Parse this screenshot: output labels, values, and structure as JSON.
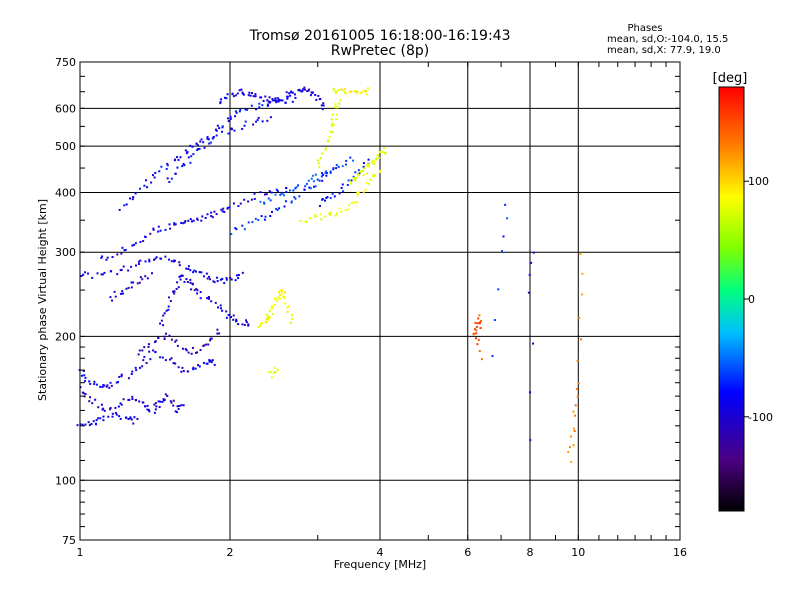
{
  "chart_data": {
    "type": "scatter",
    "title": "Tromsø 20161005 16:18:00-16:19:43",
    "subtitle": "RwPretec (8p)",
    "xlabel": "Frequency [MHz]",
    "ylabel": "Stationary phase Virtual Height [km]",
    "x_scale": "log",
    "y_scale": "log",
    "xlim": [
      1,
      16
    ],
    "ylim": [
      75,
      750
    ],
    "x_ticks": [
      1,
      2,
      4,
      6,
      8,
      10,
      16
    ],
    "y_ticks": [
      75,
      100,
      200,
      300,
      400,
      500,
      600,
      750
    ],
    "grid": true,
    "stats": {
      "heading": "Phases",
      "line_o": "mean, sd,O:-104.0, 15.5",
      "line_x": "mean, sd,X:  77.9, 19.0"
    },
    "colorbar": {
      "label": "[deg]",
      "range": [
        -180,
        180
      ],
      "ticks": [
        100,
        0,
        -100
      ],
      "colors": [
        "#000000",
        "#4b0082",
        "#0000ff",
        "#00bfff",
        "#00ff7f",
        "#7fff00",
        "#ffff00",
        "#ff7f00",
        "#ff0000"
      ]
    },
    "traces": [
      {
        "x": [
          1.0,
          1.05,
          1.1,
          1.18,
          1.25,
          1.3
        ],
        "y": [
          132,
          131,
          134,
          137,
          135,
          133
        ],
        "phase": -110
      },
      {
        "x": [
          1.0,
          1.05,
          1.12,
          1.2,
          1.28,
          1.35,
          1.4,
          1.45,
          1.5,
          1.55,
          1.6
        ],
        "y": [
          155,
          148,
          140,
          145,
          150,
          143,
          140,
          145,
          150,
          140,
          145
        ],
        "phase": -115
      },
      {
        "x": [
          1.0,
          1.04,
          1.1,
          1.15,
          1.22
        ],
        "y": [
          170,
          162,
          155,
          158,
          165
        ],
        "phase": -105
      },
      {
        "x": [
          1.25,
          1.32,
          1.4,
          1.5,
          1.6,
          1.7,
          1.8,
          1.85
        ],
        "y": [
          165,
          175,
          185,
          180,
          170,
          172,
          178,
          175
        ],
        "phase": -110
      },
      {
        "x": [
          1.3,
          1.4,
          1.5,
          1.6,
          1.7,
          1.8,
          1.9
        ],
        "y": [
          185,
          195,
          200,
          190,
          185,
          195,
          205
        ],
        "phase": -120
      },
      {
        "x": [
          1.45,
          1.5,
          1.55,
          1.6,
          1.65,
          1.7,
          1.8,
          1.9,
          2.0,
          2.1,
          2.2
        ],
        "y": [
          210,
          230,
          250,
          270,
          260,
          250,
          240,
          230,
          220,
          215,
          210
        ],
        "phase": -112
      },
      {
        "x": [
          1.0,
          1.1,
          1.2,
          1.3,
          1.4,
          1.5,
          1.6,
          1.7,
          1.8,
          1.9,
          2.0,
          2.1
        ],
        "y": [
          270,
          268,
          272,
          285,
          292,
          290,
          282,
          272,
          266,
          262,
          262,
          268
        ],
        "phase": -108
      },
      {
        "x": [
          1.15,
          1.22,
          1.3,
          1.38
        ],
        "y": [
          240,
          250,
          260,
          268
        ],
        "phase": -115
      },
      {
        "x": [
          1.1,
          1.2,
          1.3,
          1.4,
          1.5,
          1.6,
          1.7,
          1.8,
          1.9,
          2.0,
          2.2,
          2.4,
          2.6
        ],
        "y": [
          290,
          300,
          315,
          330,
          340,
          345,
          350,
          355,
          365,
          375,
          390,
          400,
          405
        ],
        "phase": -110
      },
      {
        "x": [
          1.2,
          1.3,
          1.4,
          1.5,
          1.6,
          1.7,
          1.8,
          2.0,
          2.2,
          2.4
        ],
        "y": [
          370,
          400,
          430,
          455,
          480,
          500,
          520,
          540,
          560,
          570
        ],
        "phase": -105
      },
      {
        "x": [
          1.5,
          1.6,
          1.7,
          1.8,
          1.9,
          2.0,
          2.1,
          2.3,
          2.5,
          2.7
        ],
        "y": [
          420,
          450,
          480,
          510,
          545,
          570,
          590,
          610,
          620,
          625
        ],
        "phase": -100
      },
      {
        "x": [
          1.9,
          2.0,
          2.1,
          2.2,
          2.3,
          2.4,
          2.5,
          2.6
        ],
        "y": [
          620,
          640,
          650,
          645,
          630,
          625,
          620,
          630
        ],
        "phase": -112
      },
      {
        "x": [
          2.0,
          2.2,
          2.4,
          2.6,
          2.8,
          3.0,
          3.2
        ],
        "y": [
          330,
          345,
          360,
          380,
          400,
          420,
          440
        ],
        "phase": -90
      },
      {
        "x": [
          2.3,
          2.5,
          2.7,
          2.9,
          3.1,
          3.3,
          3.5
        ],
        "y": [
          380,
          395,
          410,
          425,
          440,
          455,
          470
        ],
        "phase": -80
      },
      {
        "x": [
          2.6,
          2.7,
          2.8,
          2.9,
          3.0,
          3.1
        ],
        "y": [
          640,
          650,
          655,
          645,
          630,
          600
        ],
        "phase": -110
      },
      {
        "x": [
          3.0,
          3.2,
          3.4,
          3.6,
          3.8
        ],
        "y": [
          380,
          390,
          410,
          440,
          470
        ],
        "phase": -95
      },
      {
        "x": [
          2.3,
          2.35,
          2.4,
          2.45,
          2.5,
          2.55,
          2.6,
          2.65
        ],
        "y": [
          210,
          215,
          220,
          232,
          240,
          250,
          235,
          215
        ],
        "phase": 85
      },
      {
        "x": [
          2.4,
          2.45,
          2.5
        ],
        "y": [
          165,
          168,
          172
        ],
        "phase": 75
      },
      {
        "x": [
          2.8,
          3.0,
          3.2,
          3.4,
          3.6,
          3.8,
          4.0
        ],
        "y": [
          350,
          355,
          360,
          370,
          390,
          420,
          450
        ],
        "phase": 80
      },
      {
        "x": [
          3.0,
          3.1,
          3.2,
          3.25,
          3.3
        ],
        "y": [
          450,
          500,
          550,
          590,
          620
        ],
        "phase": 72
      },
      {
        "x": [
          3.2,
          3.35,
          3.5,
          3.65,
          3.8
        ],
        "y": [
          650,
          655,
          650,
          648,
          652
        ],
        "phase": 88
      },
      {
        "x": [
          3.5,
          3.6,
          3.7,
          3.8,
          3.9,
          4.0,
          4.1
        ],
        "y": [
          420,
          430,
          440,
          455,
          470,
          480,
          490
        ],
        "phase": 78
      },
      {
        "x": [
          6.2,
          6.25,
          6.3,
          6.35
        ],
        "y": [
          200,
          210,
          220,
          180
        ],
        "phase": 150
      },
      {
        "x": [
          6.8,
          7.0,
          7.2
        ],
        "y": [
          180,
          300,
          380
        ],
        "phase": -90
      },
      {
        "x": [
          8.0,
          8.05,
          8.1
        ],
        "y": [
          120,
          250,
          300
        ],
        "phase": -120
      },
      {
        "x": [
          9.6,
          9.8,
          10.0,
          10.1
        ],
        "y": [
          110,
          130,
          160,
          300
        ],
        "phase": 130
      }
    ]
  }
}
